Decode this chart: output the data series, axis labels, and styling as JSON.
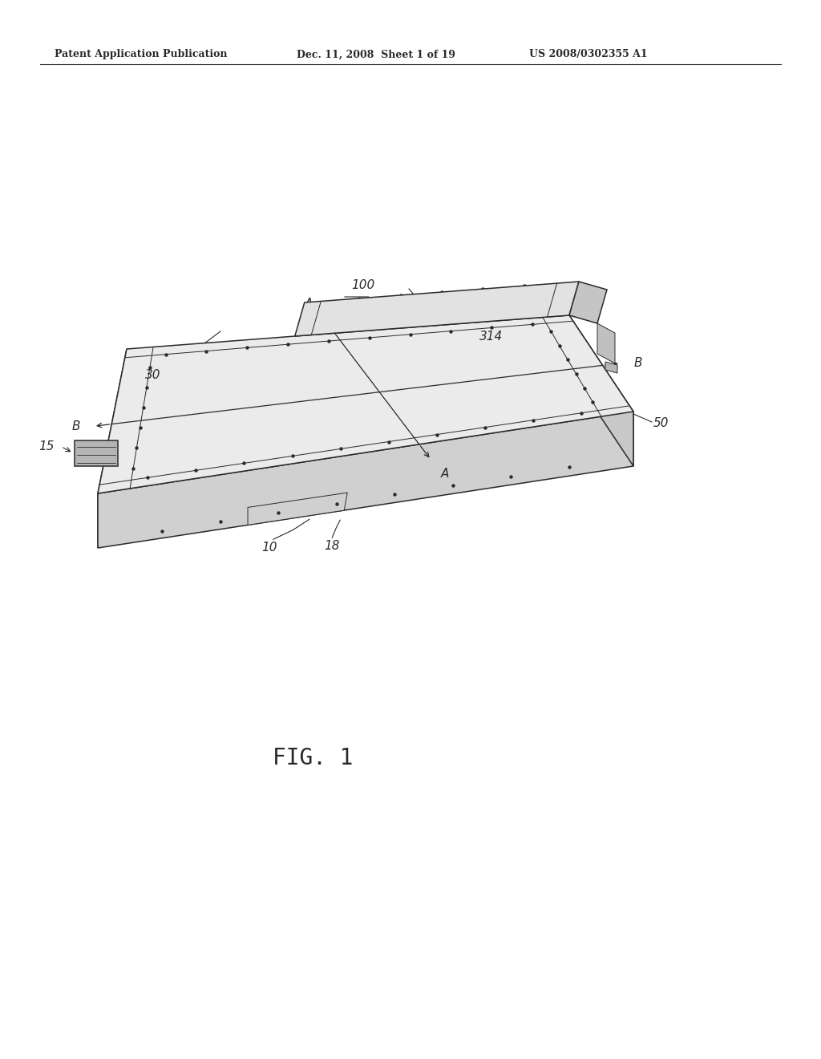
{
  "bg_color": "#ffffff",
  "header_left": "Patent Application Publication",
  "header_mid": "Dec. 11, 2008  Sheet 1 of 19",
  "header_right": "US 2008/0302355 A1",
  "fig_label": "FIG. 1",
  "line_color": "#2a2a2a",
  "face_top": "#f0f0f0",
  "face_left": "#d8d8d8",
  "face_front": "#e0e0e0",
  "face_cover": "#e8e8e8"
}
